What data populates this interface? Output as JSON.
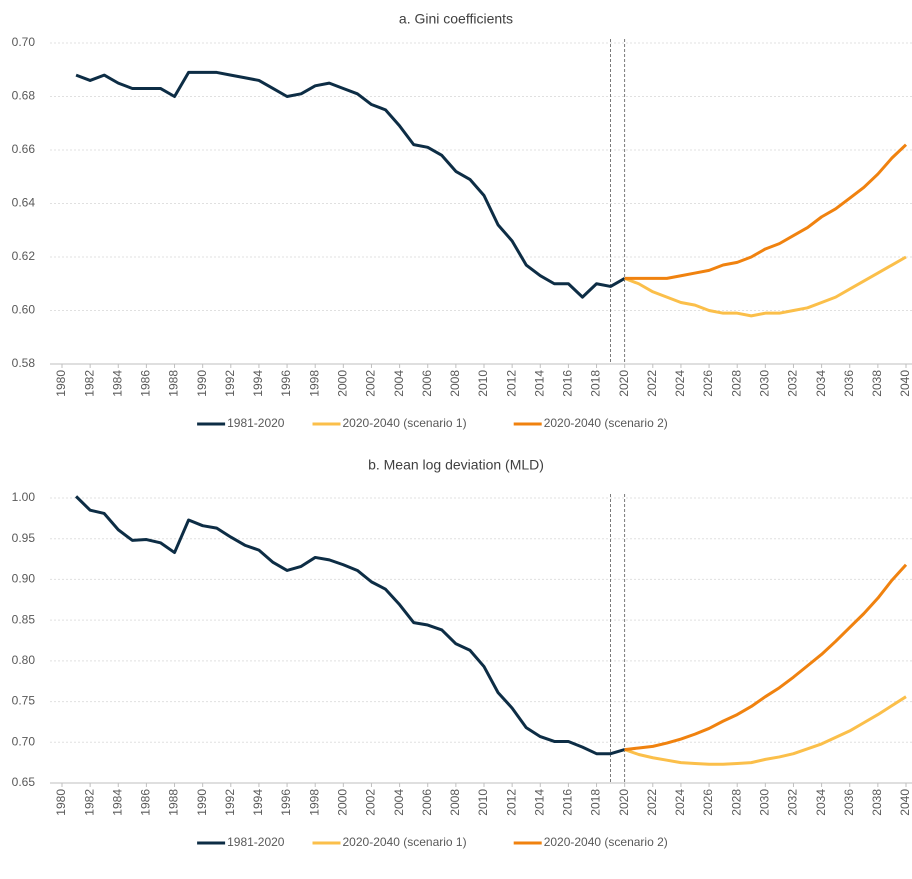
{
  "chart_data": [
    {
      "type": "line",
      "title": "a. Gini coefficients",
      "grid": true,
      "legend": "bottom",
      "x": [
        1981,
        1982,
        1983,
        1984,
        1985,
        1986,
        1987,
        1988,
        1989,
        1990,
        1991,
        1992,
        1993,
        1994,
        1995,
        1996,
        1997,
        1998,
        1999,
        2000,
        2001,
        2002,
        2003,
        2004,
        2005,
        2006,
        2007,
        2008,
        2009,
        2010,
        2011,
        2012,
        2013,
        2014,
        2015,
        2016,
        2017,
        2018,
        2019,
        2020,
        2021,
        2022,
        2023,
        2024,
        2025,
        2026,
        2027,
        2028,
        2029,
        2030,
        2031,
        2032,
        2033,
        2034,
        2035,
        2036,
        2037,
        2038,
        2039,
        2040
      ],
      "xlim": [
        1980,
        2040
      ],
      "xticks": [
        1980,
        1982,
        1984,
        1986,
        1988,
        1990,
        1992,
        1994,
        1996,
        1998,
        2000,
        2002,
        2004,
        2006,
        2008,
        2010,
        2012,
        2014,
        2016,
        2018,
        2020,
        2022,
        2024,
        2026,
        2028,
        2030,
        2032,
        2034,
        2036,
        2038,
        2040
      ],
      "ylim": [
        0.58,
        0.7
      ],
      "yticks": [
        {
          "value": 0.58,
          "label": "0.58"
        },
        {
          "value": 0.6,
          "label": "0.60"
        },
        {
          "value": 0.62,
          "label": "0.62"
        },
        {
          "value": 0.64,
          "label": "0.64"
        },
        {
          "value": 0.66,
          "label": "0.66"
        },
        {
          "value": 0.68,
          "label": "0.68"
        },
        {
          "value": 0.7,
          "label": "0.70"
        }
      ],
      "vlines": [
        2019,
        2020
      ],
      "series": [
        {
          "name": "1981-2020",
          "color": "#0d2d45",
          "values": [
            0.688,
            0.686,
            0.688,
            0.685,
            0.683,
            0.683,
            0.683,
            0.68,
            0.689,
            0.689,
            0.689,
            0.688,
            0.687,
            0.686,
            0.683,
            0.68,
            0.681,
            0.684,
            0.685,
            0.683,
            0.681,
            0.677,
            0.675,
            0.669,
            0.662,
            0.661,
            0.658,
            0.652,
            0.649,
            0.643,
            0.632,
            0.626,
            0.617,
            0.613,
            0.61,
            0.61,
            0.605,
            0.61,
            0.609,
            0.612,
            null,
            null,
            null,
            null,
            null,
            null,
            null,
            null,
            null,
            null,
            null,
            null,
            null,
            null,
            null,
            null,
            null,
            null,
            null,
            null
          ]
        },
        {
          "name": "2020-2040 (scenario 1)",
          "color": "#fbbf4a",
          "values": [
            null,
            null,
            null,
            null,
            null,
            null,
            null,
            null,
            null,
            null,
            null,
            null,
            null,
            null,
            null,
            null,
            null,
            null,
            null,
            null,
            null,
            null,
            null,
            null,
            null,
            null,
            null,
            null,
            null,
            null,
            null,
            null,
            null,
            null,
            null,
            null,
            null,
            null,
            null,
            0.612,
            0.61,
            0.607,
            0.605,
            0.603,
            0.602,
            0.6,
            0.599,
            0.599,
            0.598,
            0.599,
            0.599,
            0.6,
            0.601,
            0.603,
            0.605,
            0.608,
            0.611,
            0.614,
            0.617,
            0.62
          ]
        },
        {
          "name": "2020-2040 (scenario 2)",
          "color": "#f0820f",
          "values": [
            null,
            null,
            null,
            null,
            null,
            null,
            null,
            null,
            null,
            null,
            null,
            null,
            null,
            null,
            null,
            null,
            null,
            null,
            null,
            null,
            null,
            null,
            null,
            null,
            null,
            null,
            null,
            null,
            null,
            null,
            null,
            null,
            null,
            null,
            null,
            null,
            null,
            null,
            null,
            0.612,
            0.612,
            0.612,
            0.612,
            0.613,
            0.614,
            0.615,
            0.617,
            0.618,
            0.62,
            0.623,
            0.625,
            0.628,
            0.631,
            0.635,
            0.638,
            0.642,
            0.646,
            0.651,
            0.657,
            0.662
          ]
        }
      ]
    },
    {
      "type": "line",
      "title": "b. Mean log deviation (MLD)",
      "grid": true,
      "legend": "bottom",
      "x": [
        1981,
        1982,
        1983,
        1984,
        1985,
        1986,
        1987,
        1988,
        1989,
        1990,
        1991,
        1992,
        1993,
        1994,
        1995,
        1996,
        1997,
        1998,
        1999,
        2000,
        2001,
        2002,
        2003,
        2004,
        2005,
        2006,
        2007,
        2008,
        2009,
        2010,
        2011,
        2012,
        2013,
        2014,
        2015,
        2016,
        2017,
        2018,
        2019,
        2020,
        2021,
        2022,
        2023,
        2024,
        2025,
        2026,
        2027,
        2028,
        2029,
        2030,
        2031,
        2032,
        2033,
        2034,
        2035,
        2036,
        2037,
        2038,
        2039,
        2040
      ],
      "xlim": [
        1980,
        2040
      ],
      "xticks": [
        1980,
        1982,
        1984,
        1986,
        1988,
        1990,
        1992,
        1994,
        1996,
        1998,
        2000,
        2002,
        2004,
        2006,
        2008,
        2010,
        2012,
        2014,
        2016,
        2018,
        2020,
        2022,
        2024,
        2026,
        2028,
        2030,
        2032,
        2034,
        2036,
        2038,
        2040
      ],
      "ylim": [
        0.65,
        1.0
      ],
      "yticks": [
        0.65,
        {
          "value": 0.7,
          "label": "0.70"
        },
        0.75,
        {
          "value": 0.8,
          "label": "0.80"
        },
        0.85,
        {
          "value": 0.9,
          "label": "0.90"
        },
        0.95,
        {
          "value": 1.0,
          "label": "1.00"
        }
      ],
      "vlines": [
        2019,
        2020
      ],
      "series": [
        {
          "name": "1981-2020",
          "color": "#0d2d45",
          "values": [
            1.002,
            0.985,
            0.981,
            0.961,
            0.948,
            0.949,
            0.945,
            0.933,
            0.973,
            0.966,
            0.963,
            0.952,
            0.942,
            0.936,
            0.921,
            0.911,
            0.916,
            0.927,
            0.924,
            0.918,
            0.911,
            0.897,
            0.888,
            0.869,
            0.847,
            0.844,
            0.838,
            0.821,
            0.813,
            0.793,
            0.761,
            0.742,
            0.718,
            0.707,
            0.701,
            0.701,
            0.694,
            0.686,
            0.686,
            0.691,
            null,
            null,
            null,
            null,
            null,
            null,
            null,
            null,
            null,
            null,
            null,
            null,
            null,
            null,
            null,
            null,
            null,
            null,
            null,
            null
          ]
        },
        {
          "name": "2020-2040 (scenario 1)",
          "color": "#fbbf4a",
          "values": [
            null,
            null,
            null,
            null,
            null,
            null,
            null,
            null,
            null,
            null,
            null,
            null,
            null,
            null,
            null,
            null,
            null,
            null,
            null,
            null,
            null,
            null,
            null,
            null,
            null,
            null,
            null,
            null,
            null,
            null,
            null,
            null,
            null,
            null,
            null,
            null,
            null,
            null,
            null,
            0.691,
            0.685,
            0.681,
            0.678,
            0.675,
            0.674,
            0.673,
            0.673,
            0.674,
            0.675,
            0.679,
            0.682,
            0.686,
            0.692,
            0.698,
            0.706,
            0.714,
            0.724,
            0.734,
            0.745,
            0.756
          ]
        },
        {
          "name": "2020-2040 (scenario 2)",
          "color": "#f0820f",
          "values": [
            null,
            null,
            null,
            null,
            null,
            null,
            null,
            null,
            null,
            null,
            null,
            null,
            null,
            null,
            null,
            null,
            null,
            null,
            null,
            null,
            null,
            null,
            null,
            null,
            null,
            null,
            null,
            null,
            null,
            null,
            null,
            null,
            null,
            null,
            null,
            null,
            null,
            null,
            null,
            0.691,
            0.693,
            0.695,
            0.699,
            0.704,
            0.71,
            0.717,
            0.726,
            0.734,
            0.744,
            0.756,
            0.767,
            0.78,
            0.794,
            0.808,
            0.824,
            0.841,
            0.858,
            0.877,
            0.899,
            0.918
          ]
        }
      ]
    }
  ]
}
